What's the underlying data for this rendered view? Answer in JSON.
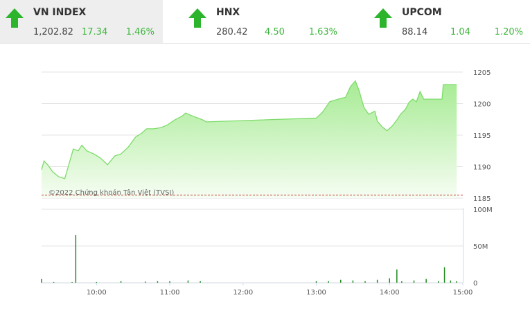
{
  "header": [
    {
      "name": "VN INDEX",
      "value": "1,202.82",
      "change": "17.34",
      "percent": "1.46%"
    },
    {
      "name": "HNX",
      "value": "280.42",
      "change": "4.50",
      "percent": "1.63%"
    },
    {
      "name": "UPCOM",
      "value": "88.14",
      "change": "1.04",
      "percent": "1.20%"
    }
  ],
  "chart_data": [
    {
      "type": "area",
      "annotation": "©2022 Chứng khoán Tân Việt (TVSI)",
      "color": "#7ddb6a",
      "reference_line": 1185.48,
      "reference_color": "#c0392b",
      "x": [
        555,
        557,
        560,
        564,
        569,
        574,
        577,
        581,
        585,
        588,
        592,
        598,
        603,
        609,
        615,
        620,
        626,
        632,
        637,
        641,
        647,
        653,
        658,
        664,
        670,
        673,
        679,
        686,
        690,
        780,
        785,
        791,
        798,
        804,
        808,
        812,
        815,
        819,
        823,
        828,
        830,
        834,
        838,
        842,
        846,
        849,
        853,
        856,
        859,
        862,
        865,
        868,
        883,
        884,
        895
      ],
      "values": [
        1189.5,
        1190.9,
        1190.3,
        1189.2,
        1188.4,
        1188.1,
        1190.1,
        1192.8,
        1192.5,
        1193.4,
        1192.5,
        1192.0,
        1191.4,
        1190.3,
        1191.7,
        1192.0,
        1193.1,
        1194.7,
        1195.3,
        1196.0,
        1196.0,
        1196.2,
        1196.6,
        1197.4,
        1198.0,
        1198.5,
        1198.0,
        1197.5,
        1197.1,
        1197.7,
        1198.6,
        1200.3,
        1200.7,
        1201.0,
        1202.7,
        1203.6,
        1202.1,
        1199.4,
        1198.3,
        1198.8,
        1197.2,
        1196.3,
        1195.7,
        1196.4,
        1197.4,
        1198.3,
        1199.1,
        1200.2,
        1200.7,
        1200.3,
        1201.9,
        1200.7,
        1200.7,
        1203.0,
        1203.0
      ],
      "xlim": [
        555,
        900
      ],
      "ylim": [
        1185,
        1205
      ],
      "yticks": [
        1185,
        1190,
        1195,
        1200,
        1205
      ],
      "grid": true
    },
    {
      "type": "bar",
      "color": "#1e8c1e",
      "x": [
        555,
        565,
        580,
        583,
        600,
        620,
        640,
        650,
        660,
        675,
        685,
        780,
        790,
        800,
        810,
        820,
        830,
        840,
        846,
        850,
        860,
        870,
        880,
        885,
        890,
        895
      ],
      "values": [
        5000000,
        1000000,
        1000000,
        65000000,
        1000000,
        2000000,
        1500000,
        2000000,
        2000000,
        3000000,
        2000000,
        2000000,
        2000000,
        4000000,
        3000000,
        2000000,
        4000000,
        6000000,
        18000000,
        2000000,
        3000000,
        5000000,
        2000000,
        21000000,
        3000000,
        2000000
      ],
      "xlim": [
        555,
        900
      ],
      "xticks": [
        {
          "value": 600,
          "label": "10:00"
        },
        {
          "value": 660,
          "label": "11:00"
        },
        {
          "value": 720,
          "label": "12:00"
        },
        {
          "value": 780,
          "label": "13:00"
        },
        {
          "value": 840,
          "label": "14:00"
        },
        {
          "value": 900,
          "label": "15:00"
        }
      ],
      "ylim": [
        0,
        100000000
      ],
      "yticks": [
        0,
        {
          "value": 50000000,
          "label": "50M"
        },
        {
          "value": 100000000,
          "label": "100M"
        }
      ],
      "grid": true
    }
  ]
}
